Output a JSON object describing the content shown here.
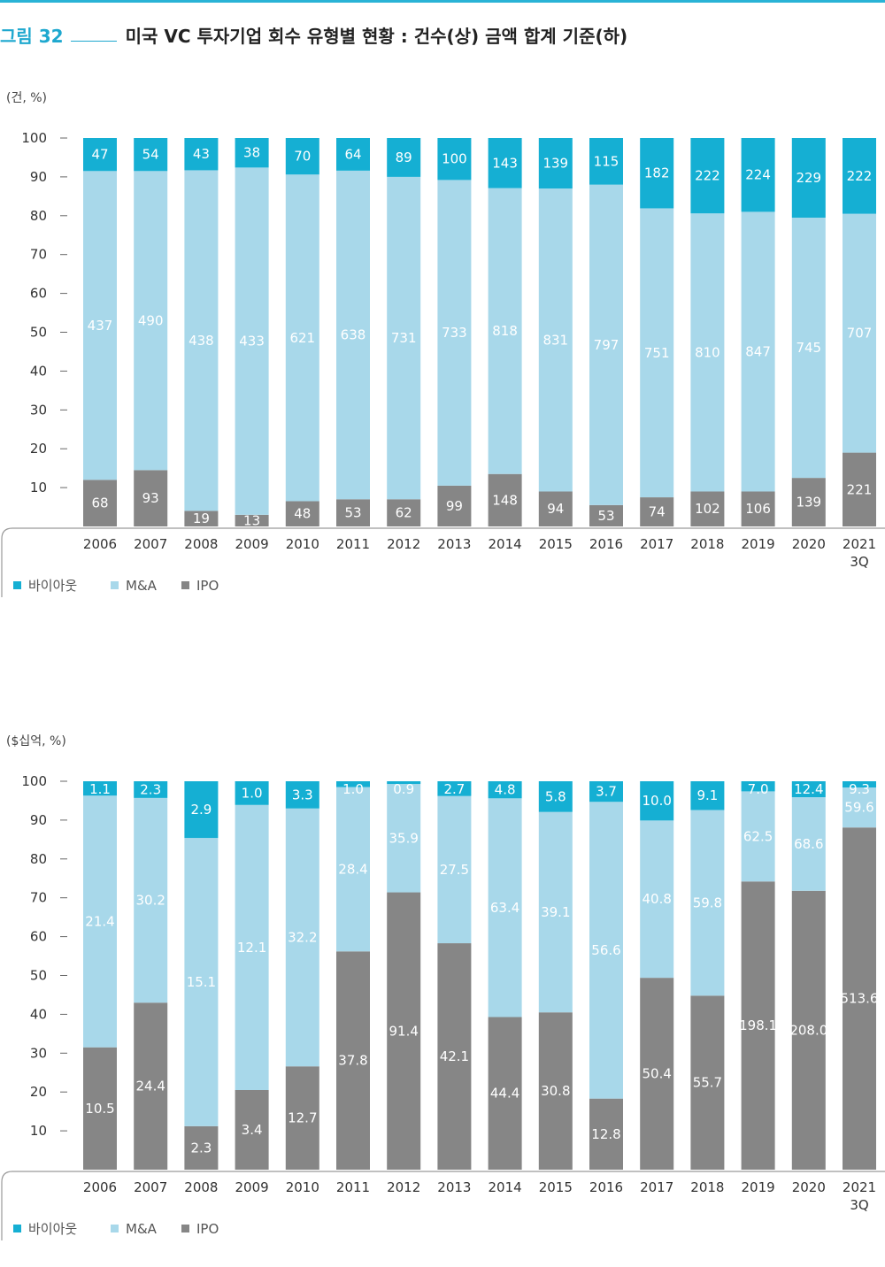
{
  "figure": {
    "number": "그림 32",
    "title": "미국 VC 투자기업 회수 유형별 현황 : 건수(상) 금액 합계 기준(하)"
  },
  "colors": {
    "buyout": "#15afd3",
    "ma": "#a8d8ea",
    "ipo": "#868686",
    "accent": "#1ea8cf"
  },
  "chart_data": [
    {
      "type": "bar",
      "stacked": true,
      "unit_label": "(건, %)",
      "ylim": [
        0,
        100
      ],
      "yticks": [
        10,
        20,
        30,
        40,
        50,
        60,
        70,
        80,
        90,
        100
      ],
      "categories": [
        "2006",
        "2007",
        "2008",
        "2009",
        "2010",
        "2011",
        "2012",
        "2013",
        "2014",
        "2015",
        "2016",
        "2017",
        "2018",
        "2019",
        "2020",
        "2021\n3Q"
      ],
      "series": [
        {
          "name": "IPO",
          "key": "ipo",
          "values": [
            12,
            14.5,
            4,
            3,
            6.5,
            7,
            7,
            10.5,
            13.5,
            9,
            5.5,
            7.5,
            9,
            9,
            12.5,
            19
          ],
          "labels": [
            "68",
            "93",
            "19",
            "13",
            "48",
            "53",
            "62",
            "99",
            "148",
            "94",
            "53",
            "74",
            "102",
            "106",
            "139",
            "221"
          ]
        },
        {
          "name": "M&A",
          "key": "ma",
          "values": [
            79.5,
            77,
            87.7,
            89.4,
            84.1,
            84.6,
            83,
            78.7,
            73.6,
            78,
            82.5,
            74.4,
            71.6,
            72,
            67,
            61.5
          ],
          "labels": [
            "437",
            "490",
            "438",
            "433",
            "621",
            "638",
            "731",
            "733",
            "818",
            "831",
            "797",
            "751",
            "810",
            "847",
            "745",
            "707"
          ]
        },
        {
          "name": "바이아웃",
          "key": "buyout",
          "values": [
            8.5,
            8.5,
            8.3,
            7.6,
            9.4,
            8.4,
            10,
            10.8,
            12.9,
            13,
            12,
            18.1,
            19.4,
            19,
            20.5,
            19.5
          ],
          "labels": [
            "47",
            "54",
            "43",
            "38",
            "70",
            "64",
            "89",
            "100",
            "143",
            "139",
            "115",
            "182",
            "222",
            "224",
            "229",
            "222"
          ]
        }
      ],
      "legend": [
        "바이아웃",
        "M&A",
        "IPO"
      ]
    },
    {
      "type": "bar",
      "stacked": true,
      "unit_label": "($십억, %)",
      "ylim": [
        0,
        100
      ],
      "yticks": [
        10,
        20,
        30,
        40,
        50,
        60,
        70,
        80,
        90,
        100
      ],
      "categories": [
        "2006",
        "2007",
        "2008",
        "2009",
        "2010",
        "2011",
        "2012",
        "2013",
        "2014",
        "2015",
        "2016",
        "2017",
        "2018",
        "2019",
        "2020",
        "2021\n3Q"
      ],
      "series": [
        {
          "name": "IPO",
          "key": "ipo",
          "values": [
            31.5,
            43,
            11.2,
            20.5,
            26.6,
            56.2,
            71.4,
            58.3,
            39.3,
            40.5,
            18.3,
            49.4,
            44.8,
            74.2,
            71.8,
            88.1
          ],
          "labels": [
            "10.5",
            "24.4",
            "2.3",
            "3.4",
            "12.7",
            "37.8",
            "91.4",
            "42.1",
            "44.4",
            "30.8",
            "12.8",
            "50.4",
            "55.7",
            "198.1",
            "208.0",
            "513.6"
          ]
        },
        {
          "name": "M&A",
          "key": "ma",
          "values": [
            64.8,
            52.7,
            74.2,
            73.4,
            66.4,
            42.3,
            27.9,
            37.9,
            56.3,
            51.6,
            76.4,
            40.5,
            47.8,
            23.2,
            24.1,
            10.3
          ],
          "labels": [
            "21.4",
            "30.2",
            "15.1",
            "12.1",
            "32.2",
            "28.4",
            "35.9",
            "27.5",
            "63.4",
            "39.1",
            "56.6",
            "40.8",
            "59.8",
            "62.5",
            "68.6",
            "59.6"
          ]
        },
        {
          "name": "바이아웃",
          "key": "buyout",
          "values": [
            3.7,
            4.3,
            14.6,
            6.1,
            7,
            1.5,
            0.7,
            3.8,
            4.4,
            7.9,
            5.3,
            10.1,
            7.4,
            2.6,
            4.1,
            1.6
          ],
          "labels": [
            "1.1",
            "2.3",
            "2.9",
            "1.0",
            "3.3",
            "1.0",
            "0.9",
            "2.7",
            "4.8",
            "5.8",
            "3.7",
            "10.0",
            "9.1",
            "7.0",
            "12.4",
            "9.3"
          ]
        }
      ],
      "legend": [
        "바이아웃",
        "M&A",
        "IPO"
      ]
    }
  ]
}
